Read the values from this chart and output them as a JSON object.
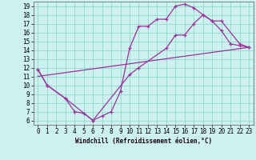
{
  "xlabel": "Windchill (Refroidissement éolien,°C)",
  "bg_color": "#cdf0f0",
  "grid_color": "#99ddcc",
  "line_color": "#993399",
  "xlim": [
    -0.5,
    23.5
  ],
  "ylim": [
    5.5,
    19.5
  ],
  "xticks": [
    0,
    1,
    2,
    3,
    4,
    5,
    6,
    7,
    8,
    9,
    10,
    11,
    12,
    13,
    14,
    15,
    16,
    17,
    18,
    19,
    20,
    21,
    22,
    23
  ],
  "yticks": [
    6,
    7,
    8,
    9,
    10,
    11,
    12,
    13,
    14,
    15,
    16,
    17,
    18,
    19
  ],
  "line1_x": [
    0,
    1,
    3,
    4,
    5,
    6,
    7,
    8,
    9,
    10,
    11,
    12,
    13,
    14,
    15,
    16,
    17,
    18,
    19,
    20,
    21,
    22,
    23
  ],
  "line1_y": [
    11.8,
    10.0,
    8.5,
    7.0,
    6.8,
    6.0,
    6.5,
    7.0,
    9.3,
    14.2,
    16.7,
    16.7,
    17.5,
    17.5,
    19.0,
    19.2,
    18.8,
    18.0,
    17.3,
    16.2,
    14.7,
    14.5,
    14.3
  ],
  "line2_x": [
    0,
    1,
    3,
    6,
    10,
    11,
    14,
    15,
    16,
    17,
    18,
    19,
    20,
    22,
    23
  ],
  "line2_y": [
    11.8,
    10.0,
    8.5,
    6.0,
    11.2,
    12.0,
    14.2,
    15.7,
    15.7,
    17.0,
    18.0,
    17.3,
    17.3,
    14.7,
    14.3
  ],
  "line3_x": [
    0,
    23
  ],
  "line3_y": [
    11.0,
    14.3
  ]
}
